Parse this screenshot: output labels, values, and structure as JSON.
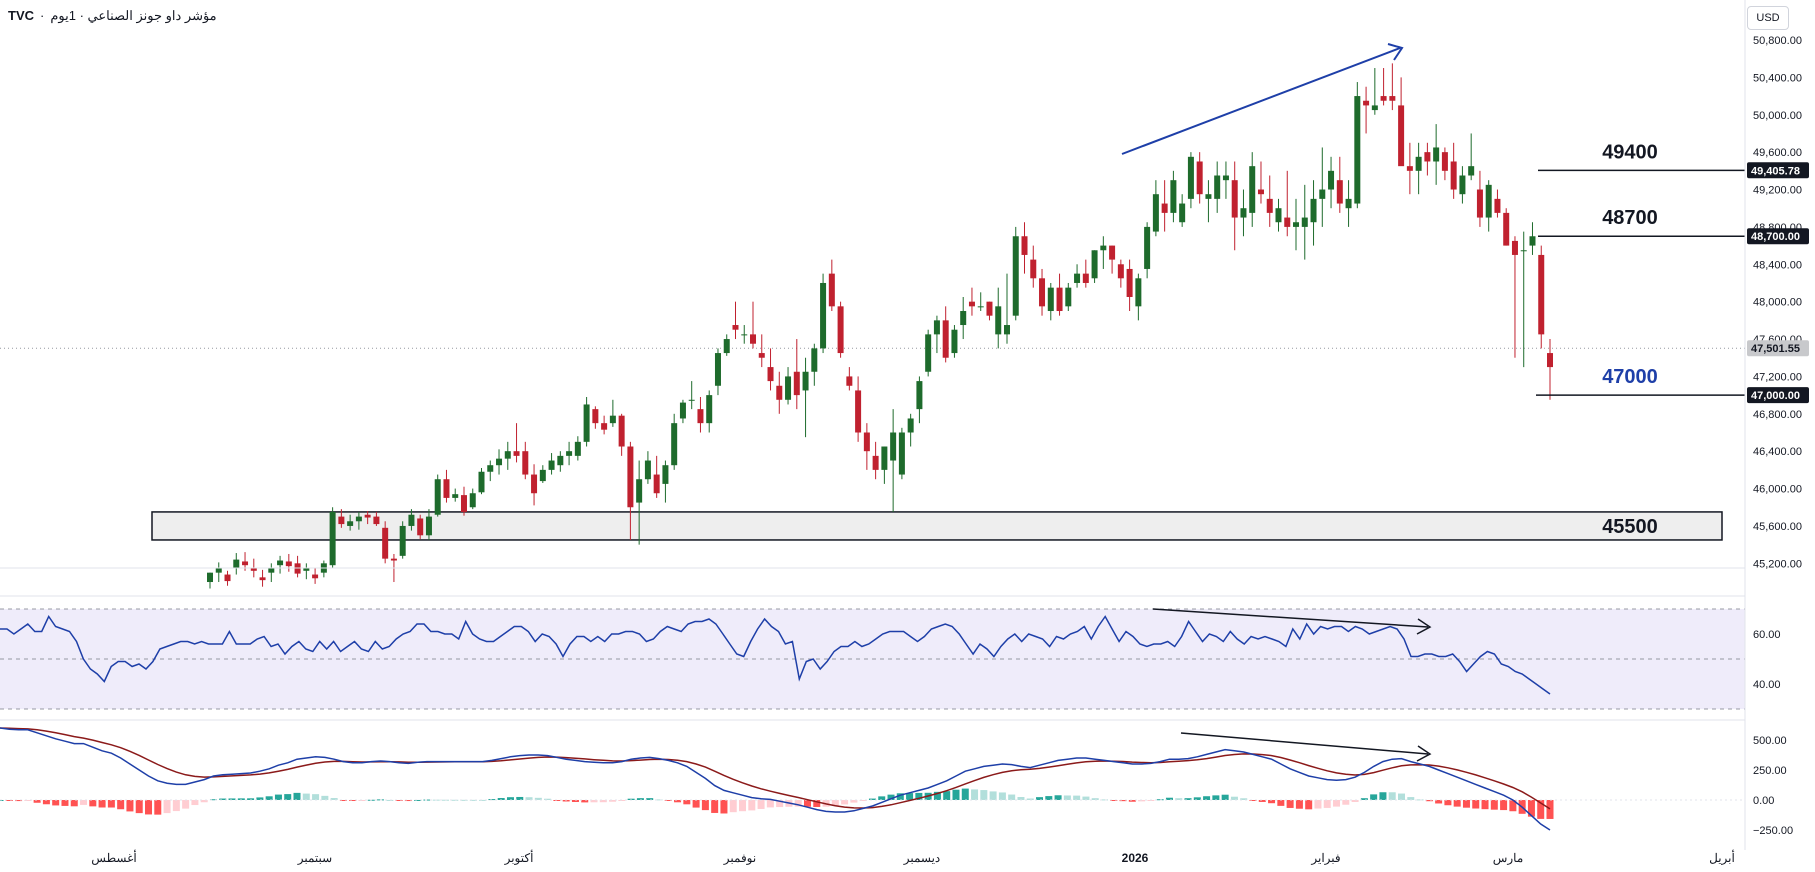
{
  "header": {
    "symbol": "TVC",
    "title": "مؤشر داو جونز الصناعي · 1يوم",
    "currency": "USD"
  },
  "colors": {
    "up": "#1e6b2c",
    "down": "#c0212f",
    "trend": "#1e3fa8",
    "rsi": "#1e3fa8",
    "macd": "#1e3fa8",
    "signal": "#8b1a1a",
    "hist_up_strong": "#26a69a",
    "hist_up_weak": "#b2dfdb",
    "hist_down_strong": "#ff5252",
    "hist_down_weak": "#ffcdd2"
  },
  "chart_data": {
    "type": "candlestick",
    "price_axis": {
      "ticks": [
        "50,800.00",
        "50,400.00",
        "50,000.00",
        "49,600.00",
        "49,200.00",
        "48,800.00",
        "48,400.00",
        "48,000.00",
        "47,600.00",
        "47,200.00",
        "46,800.00",
        "46,400.00",
        "46,000.00",
        "45,600.00",
        "45,200.00"
      ],
      "badges": [
        {
          "label": "49,405.78",
          "value": 49405.78,
          "style": "dark"
        },
        {
          "label": "48,700.00",
          "value": 48700,
          "style": "dark"
        },
        {
          "label": "47,501.55",
          "value": 47501.55,
          "style": "grey"
        },
        {
          "label": "47,000.00",
          "value": 47000,
          "style": "dark"
        }
      ]
    },
    "time_axis": [
      "أغسطس",
      "سبتمبر",
      "أكتوبر",
      "نوفمبر",
      "ديسمبر",
      "2026",
      "فبراير",
      "مارس",
      "أبريل"
    ],
    "levels": [
      {
        "label": "49400",
        "value": 49405
      },
      {
        "label": "48700",
        "value": 48700
      },
      {
        "label": "47000",
        "value": 47000,
        "color": "#1e3fa8"
      }
    ],
    "support_zone": {
      "label": "45500",
      "low": 45450,
      "high": 45750
    },
    "candles": [
      [
        45000,
        45100,
        44930,
        45100
      ],
      [
        45100,
        45210,
        45000,
        45150
      ],
      [
        45080,
        45120,
        44960,
        45010
      ],
      [
        45150,
        45310,
        45080,
        45240
      ],
      [
        45220,
        45320,
        45120,
        45180
      ],
      [
        45150,
        45250,
        45050,
        45120
      ],
      [
        45050,
        45130,
        44950,
        45020
      ],
      [
        45100,
        45200,
        45000,
        45150
      ],
      [
        45180,
        45280,
        45090,
        45230
      ],
      [
        45220,
        45300,
        45110,
        45170
      ],
      [
        45200,
        45280,
        45050,
        45090
      ],
      [
        45120,
        45200,
        45030,
        45150
      ],
      [
        45080,
        45150,
        44980,
        45040
      ],
      [
        45100,
        45230,
        45050,
        45200
      ],
      [
        45180,
        45800,
        45150,
        45750
      ],
      [
        45700,
        45780,
        45580,
        45620
      ],
      [
        45600,
        45720,
        45550,
        45650
      ],
      [
        45650,
        45750,
        45560,
        45700
      ],
      [
        45720,
        45760,
        45620,
        45690
      ],
      [
        45700,
        45750,
        45600,
        45620
      ],
      [
        45580,
        45650,
        45200,
        45250
      ],
      [
        45250,
        45300,
        45000,
        45230
      ],
      [
        45280,
        45650,
        45250,
        45600
      ],
      [
        45600,
        45780,
        45550,
        45720
      ],
      [
        45680,
        45720,
        45460,
        45500
      ],
      [
        45500,
        45780,
        45450,
        45700
      ],
      [
        45720,
        46150,
        45700,
        46100
      ],
      [
        46100,
        46200,
        45850,
        45900
      ],
      [
        45900,
        46000,
        45860,
        45940
      ],
      [
        45930,
        46020,
        45710,
        45750
      ],
      [
        45800,
        46000,
        45780,
        45950
      ],
      [
        45960,
        46220,
        45940,
        46180
      ],
      [
        46180,
        46300,
        46080,
        46250
      ],
      [
        46250,
        46420,
        46150,
        46320
      ],
      [
        46320,
        46500,
        46200,
        46400
      ],
      [
        46400,
        46700,
        46280,
        46350
      ],
      [
        46400,
        46500,
        46100,
        46150
      ],
      [
        46150,
        46260,
        45820,
        45950
      ],
      [
        46080,
        46250,
        46060,
        46200
      ],
      [
        46200,
        46380,
        46150,
        46300
      ],
      [
        46250,
        46400,
        46180,
        46350
      ],
      [
        46350,
        46500,
        46250,
        46400
      ],
      [
        46350,
        46560,
        46300,
        46500
      ],
      [
        46500,
        46980,
        46450,
        46900
      ],
      [
        46850,
        46880,
        46640,
        46700
      ],
      [
        46700,
        46780,
        46580,
        46630
      ],
      [
        46700,
        46950,
        46660,
        46780
      ],
      [
        46780,
        46800,
        46350,
        46450
      ],
      [
        46450,
        46500,
        45450,
        45800
      ],
      [
        45850,
        46300,
        45400,
        46100
      ],
      [
        46100,
        46400,
        46050,
        46300
      ],
      [
        46150,
        46350,
        45900,
        45950
      ],
      [
        46050,
        46300,
        45850,
        46250
      ],
      [
        46250,
        46800,
        46200,
        46700
      ],
      [
        46750,
        46950,
        46700,
        46920
      ],
      [
        46950,
        47150,
        46850,
        46950
      ],
      [
        46850,
        46980,
        46600,
        46700
      ],
      [
        46700,
        47050,
        46600,
        47000
      ],
      [
        47100,
        47500,
        47000,
        47450
      ],
      [
        47450,
        47650,
        47420,
        47600
      ],
      [
        47750,
        48000,
        47600,
        47700
      ],
      [
        47650,
        47750,
        47550,
        47650
      ],
      [
        47650,
        48000,
        47500,
        47550
      ],
      [
        47450,
        47650,
        47300,
        47400
      ],
      [
        47300,
        47500,
        47050,
        47150
      ],
      [
        47100,
        47250,
        46800,
        46950
      ],
      [
        46950,
        47300,
        46900,
        47200
      ],
      [
        47250,
        47600,
        46850,
        47000
      ],
      [
        47050,
        47400,
        46550,
        47250
      ],
      [
        47250,
        47550,
        47100,
        47500
      ],
      [
        47500,
        48300,
        47450,
        48200
      ],
      [
        48300,
        48450,
        47900,
        47950
      ],
      [
        47950,
        48000,
        47400,
        47450
      ],
      [
        47200,
        47300,
        47050,
        47100
      ],
      [
        47050,
        47200,
        46500,
        46600
      ],
      [
        46600,
        46700,
        46200,
        46400
      ],
      [
        46350,
        46500,
        46100,
        46200
      ],
      [
        46200,
        46450,
        46050,
        46450
      ],
      [
        46300,
        46850,
        45750,
        46600
      ],
      [
        46150,
        46650,
        46100,
        46600
      ],
      [
        46600,
        46800,
        46450,
        46750
      ],
      [
        46850,
        47200,
        46700,
        47150
      ],
      [
        47250,
        47700,
        47200,
        47650
      ],
      [
        47650,
        47850,
        47450,
        47800
      ],
      [
        47800,
        47950,
        47350,
        47400
      ],
      [
        47450,
        47750,
        47400,
        47700
      ],
      [
        47750,
        48050,
        47600,
        47900
      ],
      [
        48000,
        48150,
        47850,
        47950
      ],
      [
        47950,
        48100,
        47900,
        47950
      ],
      [
        48000,
        48000,
        47800,
        47850
      ],
      [
        47650,
        48150,
        47500,
        47950
      ],
      [
        47650,
        48300,
        47550,
        47750
      ],
      [
        47850,
        48800,
        47800,
        48700
      ],
      [
        48700,
        48850,
        48300,
        48500
      ],
      [
        48450,
        48600,
        48150,
        48250
      ],
      [
        48250,
        48350,
        47850,
        47950
      ],
      [
        47900,
        48200,
        47800,
        48150
      ],
      [
        48150,
        48300,
        47850,
        47900
      ],
      [
        47950,
        48200,
        47900,
        48150
      ],
      [
        48200,
        48400,
        48150,
        48300
      ],
      [
        48300,
        48450,
        48150,
        48200
      ],
      [
        48250,
        48550,
        48200,
        48550
      ],
      [
        48550,
        48700,
        48350,
        48600
      ],
      [
        48600,
        48600,
        48300,
        48450
      ],
      [
        48400,
        48450,
        48150,
        48250
      ],
      [
        48350,
        48450,
        47900,
        48050
      ],
      [
        47950,
        48300,
        47800,
        48250
      ],
      [
        48350,
        48850,
        48250,
        48800
      ],
      [
        48750,
        49300,
        48700,
        49150
      ],
      [
        49050,
        49300,
        48750,
        48950
      ],
      [
        48950,
        49400,
        48850,
        49300
      ],
      [
        48850,
        49150,
        48800,
        49050
      ],
      [
        49100,
        49600,
        49000,
        49550
      ],
      [
        49500,
        49600,
        49050,
        49150
      ],
      [
        49100,
        49300,
        48850,
        49150
      ],
      [
        49100,
        49500,
        48950,
        49350
      ],
      [
        49300,
        49500,
        49100,
        49350
      ],
      [
        49300,
        49500,
        48550,
        48900
      ],
      [
        48900,
        49200,
        48700,
        49000
      ],
      [
        48950,
        49600,
        48800,
        49450
      ],
      [
        49200,
        49500,
        49050,
        49150
      ],
      [
        49100,
        49350,
        48800,
        48950
      ],
      [
        48850,
        49100,
        48750,
        49000
      ],
      [
        48900,
        49400,
        48700,
        48800
      ],
      [
        48800,
        49100,
        48550,
        48850
      ],
      [
        48800,
        49250,
        48450,
        48900
      ],
      [
        48850,
        49300,
        48600,
        49100
      ],
      [
        49100,
        49650,
        48800,
        49200
      ],
      [
        49200,
        49550,
        49000,
        49400
      ],
      [
        49300,
        49550,
        48950,
        49050
      ],
      [
        49000,
        49300,
        48800,
        49100
      ],
      [
        49050,
        50350,
        49000,
        50200
      ],
      [
        50150,
        50300,
        49800,
        50100
      ],
      [
        50050,
        50500,
        50000,
        50100
      ],
      [
        50200,
        50500,
        50100,
        50150
      ],
      [
        50200,
        50550,
        50050,
        50150
      ],
      [
        50100,
        50400,
        49500,
        49450
      ],
      [
        49450,
        49700,
        49150,
        49400
      ],
      [
        49400,
        49700,
        49150,
        49550
      ],
      [
        49600,
        49700,
        49350,
        49500
      ],
      [
        49500,
        49900,
        49250,
        49650
      ],
      [
        49600,
        49650,
        49300,
        49400
      ],
      [
        49500,
        49700,
        49100,
        49200
      ],
      [
        49150,
        49450,
        49050,
        49350
      ],
      [
        49350,
        49800,
        49300,
        49450
      ],
      [
        49200,
        49400,
        48800,
        48900
      ],
      [
        48900,
        49300,
        48750,
        49250
      ],
      [
        49100,
        49200,
        48900,
        48950
      ],
      [
        48950,
        49000,
        48600,
        48600
      ],
      [
        48650,
        48700,
        47400,
        48500
      ],
      [
        48550,
        48750,
        47300,
        48550
      ],
      [
        48600,
        48850,
        48500,
        48700
      ],
      [
        48500,
        48600,
        47500,
        47650
      ],
      [
        47450,
        47600,
        46950,
        47300
      ]
    ],
    "rsi": {
      "label_ticks": [
        "60.00",
        "40.00"
      ],
      "levels": [
        70,
        50,
        30
      ],
      "series": [
        62,
        62,
        60,
        62,
        64,
        61,
        61,
        67,
        63,
        62,
        61,
        57,
        50,
        46,
        44,
        41,
        47,
        49,
        49,
        47,
        48,
        46,
        49,
        54,
        55,
        56,
        57,
        57,
        56,
        57,
        56,
        56,
        56,
        61,
        56,
        56,
        56,
        58,
        59,
        55,
        56,
        52,
        55,
        57,
        54,
        53,
        57,
        54,
        57,
        53,
        55,
        57,
        54,
        53,
        57,
        54,
        55,
        58,
        60,
        61,
        64,
        64,
        61,
        61,
        60,
        60,
        58,
        65,
        60,
        58,
        57,
        57,
        59,
        61,
        63,
        63,
        61,
        57,
        60,
        59,
        56,
        51,
        56,
        59,
        59,
        57,
        59,
        57,
        60,
        60,
        61,
        61,
        60,
        57,
        58,
        61,
        63,
        62,
        61,
        64,
        65,
        65,
        66,
        64,
        60,
        56,
        52,
        51,
        57,
        62,
        66,
        63,
        61,
        56,
        57,
        42,
        49,
        50,
        46,
        49,
        53,
        55,
        55,
        57,
        55,
        56,
        58,
        60,
        61,
        61,
        61,
        59,
        57,
        59,
        62,
        63,
        64,
        63,
        60,
        56,
        52,
        56,
        54,
        51,
        55,
        58,
        60,
        57,
        60,
        59,
        58,
        55,
        59,
        58,
        60,
        61,
        63,
        58,
        63,
        67,
        62,
        57,
        61,
        59,
        56,
        55,
        56,
        56,
        57,
        55,
        59,
        65,
        61,
        57,
        60,
        59,
        57,
        61,
        58,
        56,
        59,
        58,
        59,
        58,
        57,
        55,
        62,
        58,
        64,
        60,
        63,
        62,
        63,
        63,
        61,
        63,
        62,
        60,
        61,
        62,
        63,
        62,
        58,
        51,
        51,
        52,
        52,
        51,
        51,
        52,
        49,
        45,
        48,
        51,
        53,
        52,
        48,
        47,
        45,
        44,
        42,
        40,
        38,
        36
      ]
    },
    "macd": {
      "label_ticks": [
        "500.00",
        "250.00",
        "0.00",
        "−250.00"
      ],
      "macd": [
        600,
        590,
        585,
        585,
        560,
        535,
        510,
        490,
        470,
        470,
        440,
        410,
        390,
        350,
        300,
        250,
        200,
        160,
        140,
        130,
        130,
        150,
        170,
        200,
        210,
        215,
        220,
        225,
        240,
        260,
        290,
        310,
        340,
        350,
        360,
        355,
        340,
        320,
        310,
        310,
        320,
        325,
        320,
        310,
        305,
        315,
        320,
        320,
        320,
        320,
        320,
        320,
        320,
        330,
        345,
        360,
        370,
        375,
        375,
        370,
        355,
        340,
        330,
        320,
        315,
        310,
        310,
        320,
        340,
        350,
        355,
        345,
        330,
        310,
        280,
        230,
        180,
        120,
        80,
        60,
        40,
        20,
        10,
        5,
        -10,
        -25,
        -40,
        -60,
        -80,
        -95,
        -100,
        -100,
        -90,
        -70,
        -50,
        -20,
        10,
        40,
        60,
        80,
        100,
        130,
        160,
        200,
        240,
        260,
        280,
        290,
        300,
        295,
        280,
        270,
        290,
        310,
        330,
        340,
        350,
        350,
        340,
        330,
        320,
        310,
        300,
        300,
        305,
        320,
        340,
        340,
        345,
        360,
        380,
        400,
        420,
        410,
        400,
        380,
        360,
        340,
        300,
        260,
        230,
        200,
        185,
        170,
        165,
        170,
        190,
        230,
        280,
        320,
        340,
        345,
        320,
        300,
        280,
        250,
        220,
        190,
        160,
        130,
        100,
        70,
        40,
        0,
        -60,
        -130,
        -200,
        -250
      ]
    }
  }
}
